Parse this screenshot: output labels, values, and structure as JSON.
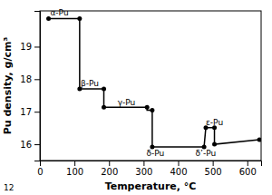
{
  "chart_data": {
    "type": "line",
    "xlabel": "Temperature, °C",
    "ylabel": "Pu density, g/cm³",
    "xlim": [
      0,
      640
    ],
    "ylim": [
      15.5,
      20.1
    ],
    "xticks": [
      0,
      100,
      200,
      300,
      400,
      500,
      600
    ],
    "yticks": [
      16,
      17,
      18,
      19
    ],
    "grid": false,
    "series": [
      {
        "type": "line",
        "color": "black",
        "x": [
          25,
          115,
          115,
          185,
          185,
          310,
          310,
          325,
          325,
          475,
          480,
          505,
          505,
          635
        ],
        "values": [
          19.86,
          19.86,
          17.7,
          17.7,
          17.14,
          17.14,
          17.05,
          17.05,
          15.92,
          15.92,
          16.51,
          16.51,
          16.0,
          16.14
        ]
      },
      {
        "type": "scatter",
        "color": "black",
        "marker": "circle",
        "x": [
          25,
          115,
          115,
          185,
          185,
          310,
          325,
          325,
          475,
          480,
          505,
          505,
          635
        ],
        "values": [
          19.86,
          19.86,
          17.7,
          17.7,
          17.14,
          17.14,
          17.05,
          15.92,
          15.92,
          16.51,
          16.51,
          16.0,
          16.14
        ]
      }
    ],
    "annotations": [
      {
        "text": "α-Pu",
        "x": 30,
        "y": 19.92
      },
      {
        "text": "β-Pu",
        "x": 118,
        "y": 17.75
      },
      {
        "text": "γ-Pu",
        "x": 225,
        "y": 17.18
      },
      {
        "text": "δ-Pu",
        "x": 308,
        "y": 15.6
      },
      {
        "text": "δ’-Pu",
        "x": 450,
        "y": 15.6
      },
      {
        "text": "ε-Pu",
        "x": 480,
        "y": 16.55
      },
      {
        "text": "12"
      }
    ]
  }
}
